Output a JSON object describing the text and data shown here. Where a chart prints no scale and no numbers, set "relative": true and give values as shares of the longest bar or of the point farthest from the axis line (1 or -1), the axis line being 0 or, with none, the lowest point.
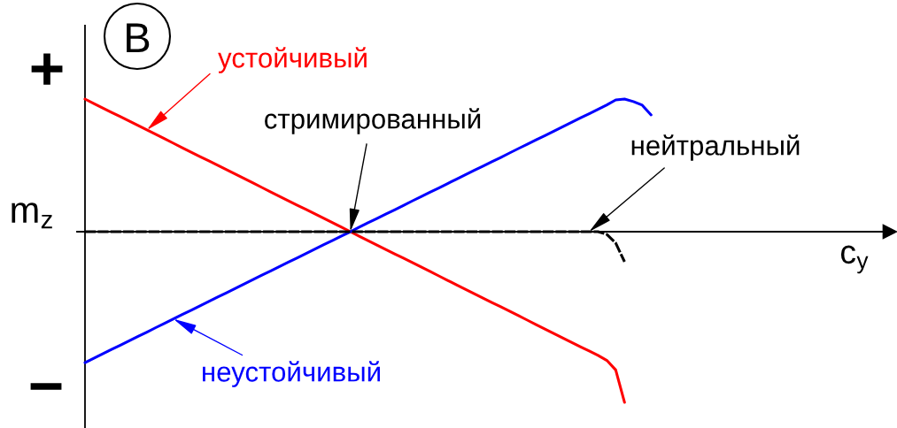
{
  "chart_data": {
    "type": "line",
    "relative": true,
    "tick_labels": false,
    "categories": [
      null,
      null,
      null,
      null,
      null,
      null,
      null,
      null,
      null,
      null,
      null,
      null,
      null,
      null,
      null,
      null,
      null,
      null,
      null,
      null,
      null,
      null,
      null,
      null,
      null,
      null,
      null,
      null,
      null,
      null,
      null,
      null,
      null,
      null,
      null,
      null,
      null,
      null,
      null,
      null,
      null,
      null,
      null,
      null,
      null,
      null,
      null,
      null,
      null,
      null,
      null,
      null,
      null,
      null,
      null,
      null,
      null,
      null,
      null,
      null,
      null,
      null,
      null,
      null,
      null,
      null,
      null,
      null,
      null,
      null,
      null,
      null,
      null,
      null,
      null,
      null,
      null,
      null,
      null,
      null,
      null,
      null,
      null,
      null,
      null,
      null,
      null,
      null,
      null,
      null,
      null,
      null
    ],
    "xlabel": "c$_{y}$",
    "ylabel": "m$_{z}$",
    "annotations": [
      "В",
      "+",
      "−",
      "стримированный"
    ],
    "series": [
      {
        "name": "устойчивый",
        "color": "#ff0000",
        "values": [
          0.777,
          0.751,
          0.725,
          0.699,
          0.674,
          0.648,
          0.622,
          0.596,
          0.57,
          0.544,
          0.518,
          0.492,
          0.466,
          0.44,
          0.415,
          0.389,
          0.363,
          0.337,
          0.311,
          0.285,
          0.259,
          0.233,
          0.207,
          0.181,
          0.155,
          0.13,
          0.104,
          0.078,
          0.052,
          0.026,
          0,
          -0.026,
          -0.052,
          -0.078,
          -0.104,
          -0.13,
          -0.155,
          -0.181,
          -0.207,
          -0.233,
          -0.259,
          -0.285,
          -0.311,
          -0.337,
          -0.363,
          -0.389,
          -0.415,
          -0.44,
          -0.466,
          -0.492,
          -0.518,
          -0.544,
          -0.57,
          -0.596,
          -0.622,
          -0.648,
          -0.674,
          -0.699,
          -0.725,
          -0.754,
          -0.81,
          -1,
          null,
          null,
          null,
          null,
          null,
          null,
          null,
          null,
          null,
          null,
          null,
          null,
          null,
          null,
          null,
          null,
          null,
          null,
          null,
          null,
          null,
          null,
          null,
          null,
          null,
          null,
          null,
          null,
          null,
          null
        ]
      },
      {
        "name": "неустойчивый",
        "color": "#0000ff",
        "values": [
          -0.767,
          -0.741,
          -0.716,
          -0.69,
          -0.665,
          -0.639,
          -0.613,
          -0.588,
          -0.562,
          -0.537,
          -0.511,
          -0.485,
          -0.46,
          -0.434,
          -0.409,
          -0.383,
          -0.358,
          -0.332,
          -0.306,
          -0.281,
          -0.255,
          -0.23,
          -0.204,
          -0.178,
          -0.153,
          -0.127,
          -0.102,
          -0.076,
          -0.051,
          -0.025,
          0,
          0.026,
          0.052,
          0.077,
          0.103,
          0.128,
          0.154,
          0.18,
          0.205,
          0.231,
          0.256,
          0.282,
          0.308,
          0.333,
          0.359,
          0.384,
          0.41,
          0.435,
          0.461,
          0.487,
          0.512,
          0.538,
          0.563,
          0.589,
          0.615,
          0.64,
          0.666,
          0.691,
          0.717,
          0.743,
          0.772,
          0.777,
          0.762,
          0.741,
          0.684,
          null,
          null,
          null,
          null,
          null,
          null,
          null,
          null,
          null,
          null,
          null,
          null,
          null,
          null,
          null,
          null,
          null,
          null,
          null,
          null,
          null,
          null,
          null,
          null,
          null,
          null,
          null
        ]
      },
      {
        "name": "нейтральный",
        "color": "#000000",
        "line_style": "dashed",
        "values": [
          0,
          0,
          0,
          0,
          0,
          0,
          0,
          0,
          0,
          0,
          0,
          0,
          0,
          0,
          0,
          0,
          0,
          0,
          0,
          0,
          0,
          0,
          0,
          0,
          0,
          0,
          0,
          0,
          0,
          0,
          0,
          0,
          0,
          0,
          0,
          0,
          0,
          0,
          0,
          0,
          0,
          0,
          0,
          0,
          0,
          0,
          0,
          0,
          0,
          0,
          0,
          0,
          0,
          0,
          0,
          0,
          0,
          0,
          0,
          -0.016,
          -0.067,
          -0.176,
          null,
          null,
          null,
          null,
          null,
          null,
          null,
          null,
          null,
          null,
          null,
          null,
          null,
          null,
          null,
          null,
          null,
          null,
          null,
          null,
          null,
          null,
          null,
          null,
          null,
          null,
          null,
          null,
          null,
          null
        ]
      }
    ]
  }
}
